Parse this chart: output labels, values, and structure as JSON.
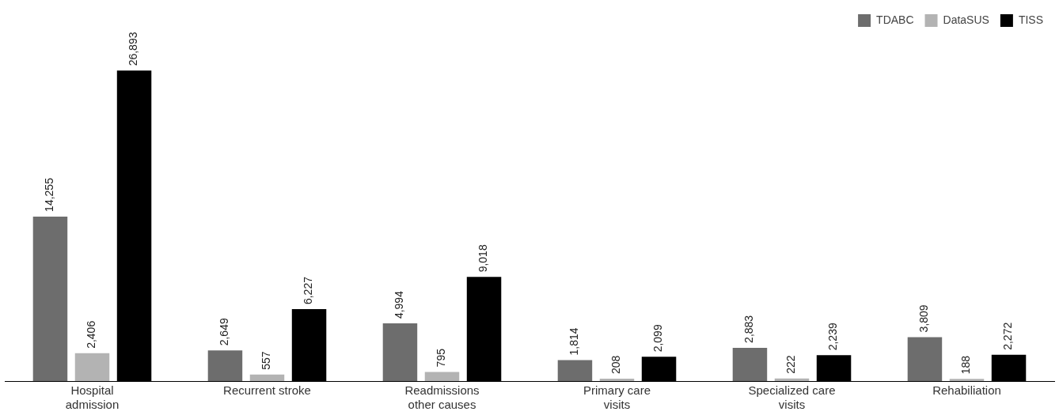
{
  "chart_data": {
    "type": "bar",
    "categories": [
      "Hospital admission",
      "Recurrent stroke",
      "Readmissions other causes",
      "Primary care visits",
      "Specialized care visits",
      "Rehabiliation"
    ],
    "series": [
      {
        "name": "TDABC",
        "color": "#6d6d6d",
        "values": [
          14255,
          2649,
          4994,
          1814,
          2883,
          3809
        ],
        "value_labels": [
          "14,255",
          "2,649",
          "4,994",
          "1,814",
          "2,883",
          "3,809"
        ]
      },
      {
        "name": "DataSUS",
        "color": "#b3b3b3",
        "values": [
          2406,
          557,
          795,
          208,
          222,
          188
        ],
        "value_labels": [
          "2,406",
          "557",
          "795",
          "208",
          "222",
          "188"
        ]
      },
      {
        "name": "TISS",
        "color": "#000000",
        "values": [
          26893,
          6227,
          9018,
          2099,
          2239,
          2272
        ],
        "value_labels": [
          "26,893",
          "6,227",
          "9,018",
          "2,099",
          "2,239",
          "2,272"
        ]
      }
    ],
    "legend": "top right"
  }
}
